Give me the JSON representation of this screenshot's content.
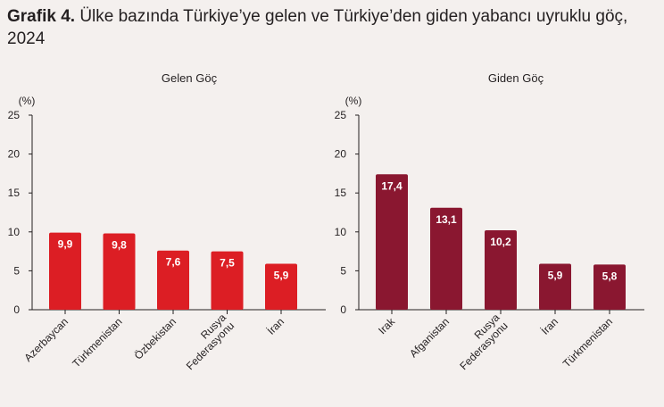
{
  "header": {
    "label": "Grafik 4.",
    "title": "Ülke bazında Türkiye’ye gelen ve Türkiye’den giden yabancı uyruklu göç, 2024"
  },
  "colors": {
    "left_bar": "#dc1e24",
    "right_bar": "#8a1730",
    "axis": "#231f20",
    "background": "#f4f0ee",
    "bar_label": "#ffffff"
  },
  "chart_data": [
    {
      "type": "bar",
      "title": "Gelen Göç",
      "ylabel": "(%)",
      "ylim": [
        0,
        25
      ],
      "yticks": [
        0,
        5,
        10,
        15,
        20,
        25
      ],
      "categories": [
        "Azerbaycan",
        "Türkmenistan",
        "Özbekistan",
        "Rusya Federasyonu",
        "İran"
      ],
      "tick_labels": [
        [
          "Azerbaycan"
        ],
        [
          "Türkmenistan"
        ],
        [
          "Özbekistan"
        ],
        [
          "Rusya",
          "Federasyonu"
        ],
        [
          "İran"
        ]
      ],
      "values": [
        9.9,
        9.8,
        7.6,
        7.5,
        5.9
      ],
      "value_labels": [
        "9,9",
        "9,8",
        "7,6",
        "7,5",
        "5,9"
      ],
      "color": "#dc1e24",
      "grid": false
    },
    {
      "type": "bar",
      "title": "Giden Göç",
      "ylabel": "(%)",
      "ylim": [
        0,
        25
      ],
      "yticks": [
        0,
        5,
        10,
        15,
        20,
        25
      ],
      "categories": [
        "Irak",
        "Afganistan",
        "Rusya Federasyonu",
        "İran",
        "Türkmenistan"
      ],
      "tick_labels": [
        [
          "Irak"
        ],
        [
          "Afganistan"
        ],
        [
          "Rusya",
          "Federasyonu"
        ],
        [
          "İran"
        ],
        [
          "Türkmenistan"
        ]
      ],
      "values": [
        17.4,
        13.1,
        10.2,
        5.9,
        5.8
      ],
      "value_labels": [
        "17,4",
        "13,1",
        "10,2",
        "5,9",
        "5,8"
      ],
      "color": "#8a1730",
      "grid": false
    }
  ]
}
